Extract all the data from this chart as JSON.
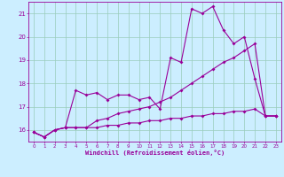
{
  "x": [
    0,
    1,
    2,
    3,
    4,
    5,
    6,
    7,
    8,
    9,
    10,
    11,
    12,
    13,
    14,
    15,
    16,
    17,
    18,
    19,
    20,
    21,
    22,
    23
  ],
  "line1": [
    15.9,
    15.7,
    16.0,
    16.1,
    17.7,
    17.5,
    17.6,
    17.3,
    17.5,
    17.5,
    17.3,
    17.4,
    16.9,
    19.1,
    18.9,
    21.2,
    21.0,
    21.3,
    20.3,
    19.7,
    20.0,
    18.2,
    16.6,
    16.6
  ],
  "line2": [
    15.9,
    15.7,
    16.0,
    16.1,
    16.1,
    16.1,
    16.4,
    16.5,
    16.7,
    16.8,
    16.9,
    17.0,
    17.2,
    17.4,
    17.7,
    18.0,
    18.3,
    18.6,
    18.9,
    19.1,
    19.4,
    19.7,
    16.6,
    16.6
  ],
  "line3": [
    15.9,
    15.7,
    16.0,
    16.1,
    16.1,
    16.1,
    16.1,
    16.2,
    16.2,
    16.3,
    16.3,
    16.4,
    16.4,
    16.5,
    16.5,
    16.6,
    16.6,
    16.7,
    16.7,
    16.8,
    16.8,
    16.9,
    16.6,
    16.6
  ],
  "color": "#990099",
  "bg_color": "#cceeff",
  "grid_color": "#99ccbb",
  "xlabel": "Windchill (Refroidissement éolien,°C)",
  "xlim": [
    -0.5,
    23.5
  ],
  "ylim": [
    15.5,
    21.5
  ],
  "yticks": [
    16,
    17,
    18,
    19,
    20,
    21
  ],
  "xticks": [
    0,
    1,
    2,
    3,
    4,
    5,
    6,
    7,
    8,
    9,
    10,
    11,
    12,
    13,
    14,
    15,
    16,
    17,
    18,
    19,
    20,
    21,
    22,
    23
  ]
}
